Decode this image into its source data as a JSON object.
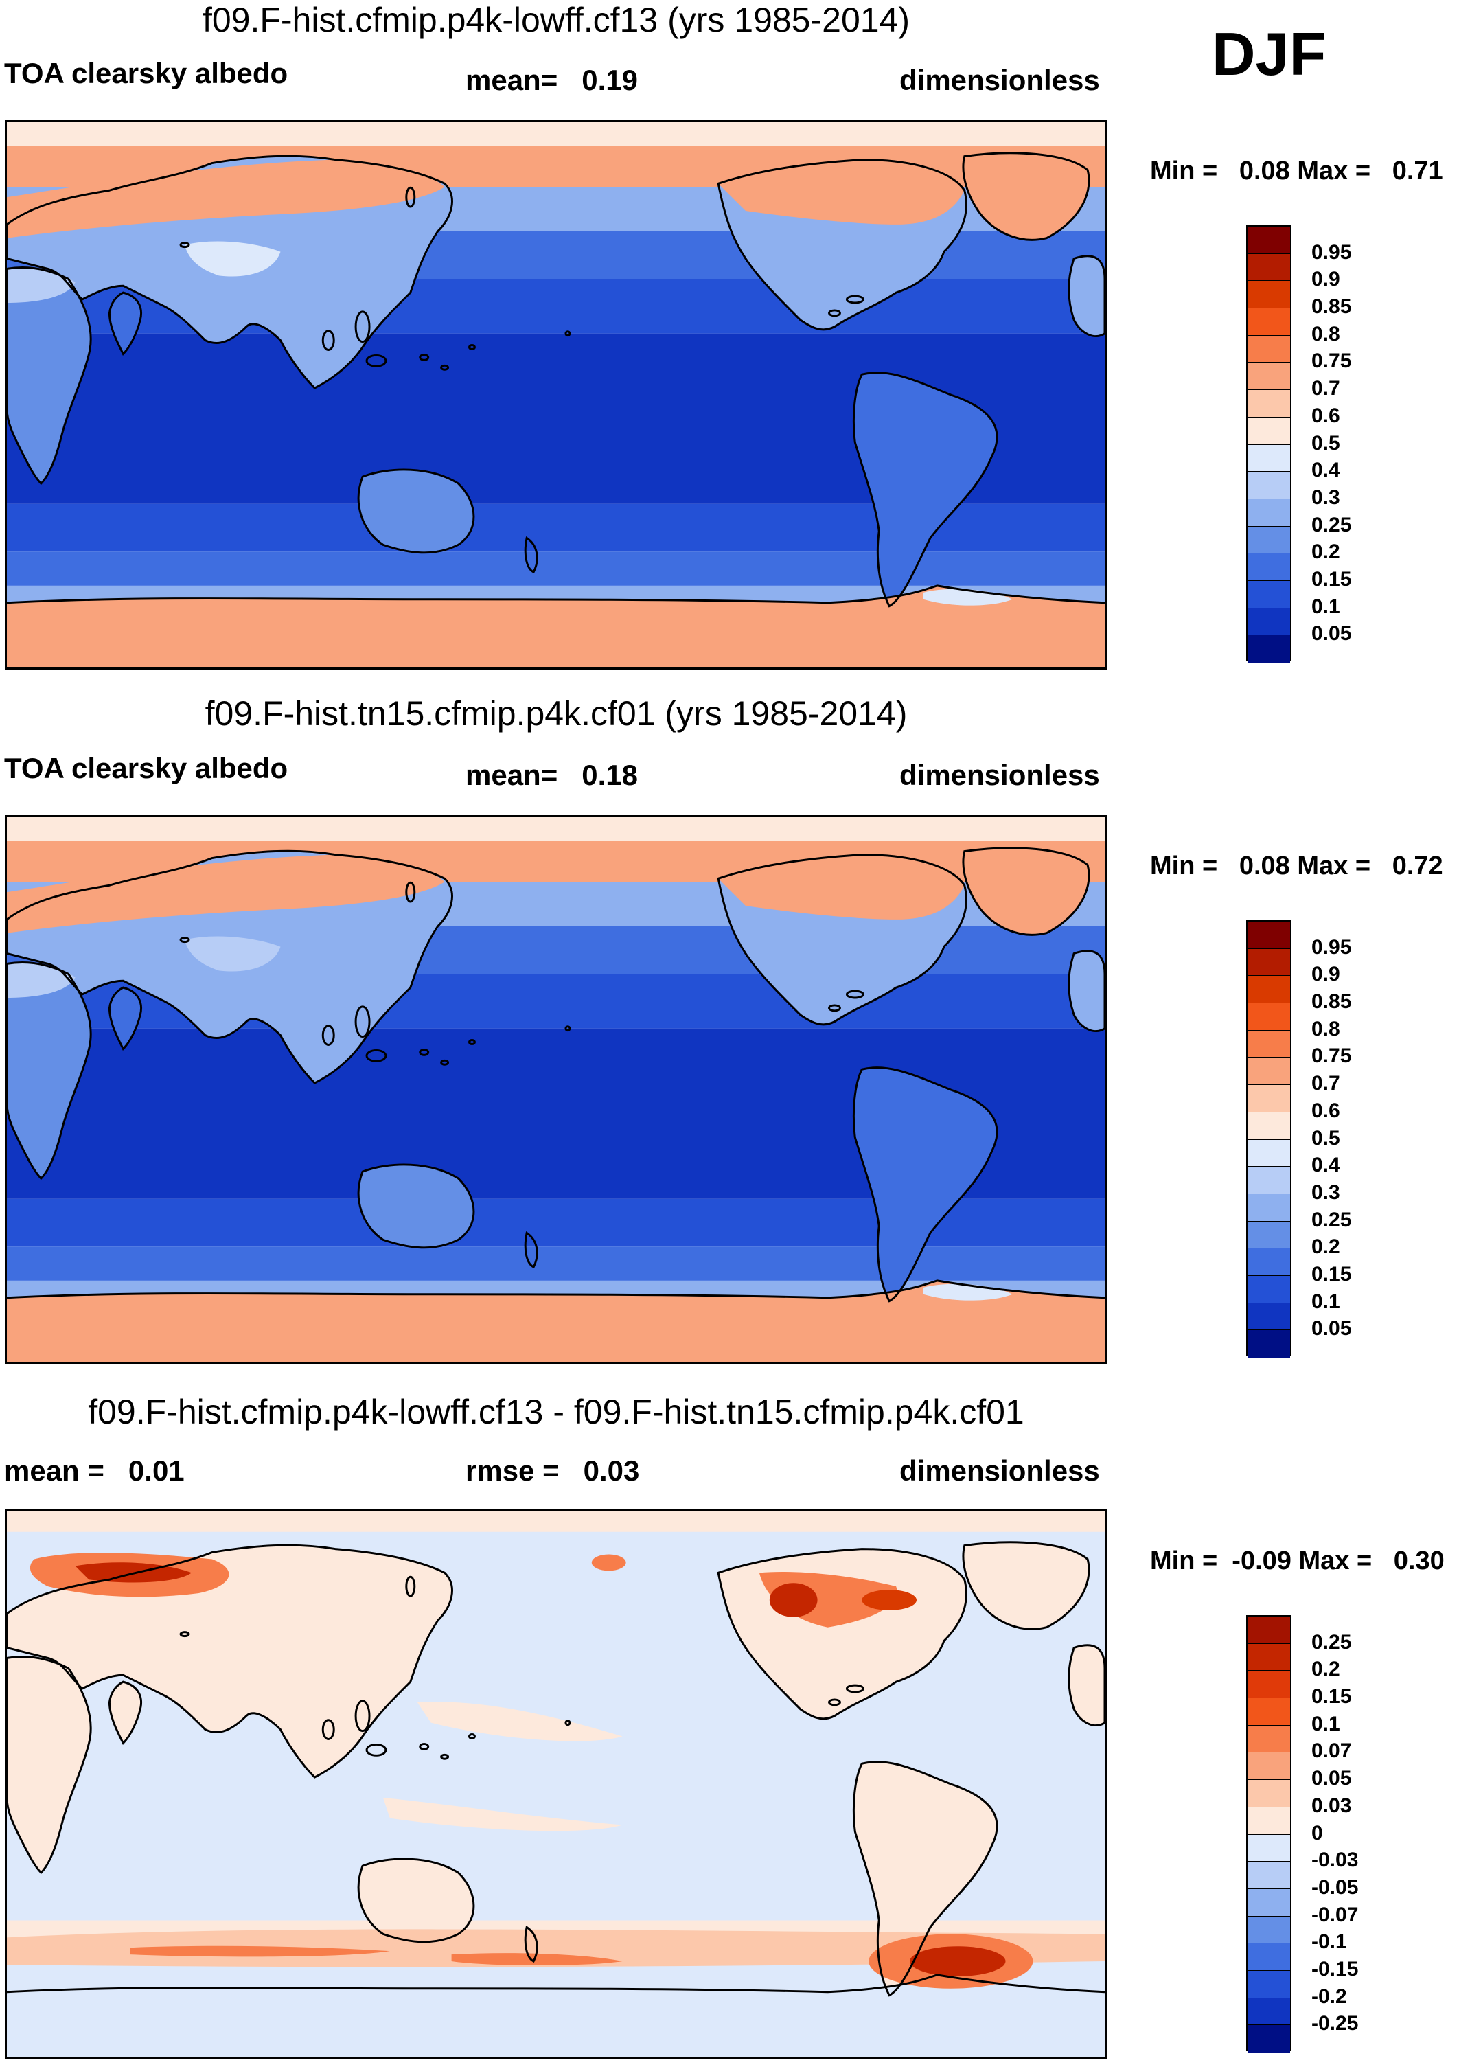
{
  "season": "DJF",
  "panels": [
    {
      "title": "f09.F-hist.cfmip.p4k-lowff.cf13 (yrs 1985-2014)",
      "left_label": "TOA clearsky albedo",
      "mid_label": "mean=   0.19",
      "right_label": "dimensionless",
      "minmax": "Min =   0.08 Max =   0.71",
      "map_type": "full",
      "colorbar": {
        "labels": [
          "0.95",
          "0.9",
          "0.85",
          "0.8",
          "0.75",
          "0.7",
          "0.6",
          "0.5",
          "0.4",
          "0.3",
          "0.25",
          "0.2",
          "0.15",
          "0.1",
          "0.05"
        ],
        "colors": [
          "#7f0000",
          "#b31c00",
          "#d93a00",
          "#f2561a",
          "#f77d4a",
          "#f9a37c",
          "#fcc8ab",
          "#fde9dc",
          "#dde9fb",
          "#b7cdf6",
          "#8eb0ef",
          "#648fe6",
          "#3f6ee0",
          "#2451d6",
          "#1035c1",
          "#000f85"
        ]
      }
    },
    {
      "title": "f09.F-hist.tn15.cfmip.p4k.cf01 (yrs 1985-2014)",
      "left_label": "TOA clearsky albedo",
      "mid_label": "mean=   0.18",
      "right_label": "dimensionless",
      "minmax": "Min =   0.08 Max =   0.72",
      "map_type": "full",
      "colorbar": {
        "labels": [
          "0.95",
          "0.9",
          "0.85",
          "0.8",
          "0.75",
          "0.7",
          "0.6",
          "0.5",
          "0.4",
          "0.3",
          "0.25",
          "0.2",
          "0.15",
          "0.1",
          "0.05"
        ],
        "colors": [
          "#7f0000",
          "#b31c00",
          "#d93a00",
          "#f2561a",
          "#f77d4a",
          "#f9a37c",
          "#fcc8ab",
          "#fde9dc",
          "#dde9fb",
          "#b7cdf6",
          "#8eb0ef",
          "#648fe6",
          "#3f6ee0",
          "#2451d6",
          "#1035c1",
          "#000f85"
        ]
      }
    },
    {
      "title": "f09.F-hist.cfmip.p4k-lowff.cf13 - f09.F-hist.tn15.cfmip.p4k.cf01",
      "left_label": "mean =   0.01",
      "mid_label": "rmse =   0.03",
      "right_label": "dimensionless",
      "minmax": "Min =  -0.09 Max =   0.30",
      "map_type": "diff",
      "colorbar": {
        "labels": [
          "0.25",
          "0.2",
          "0.15",
          "0.1",
          "0.07",
          "0.05",
          "0.03",
          "0",
          "-0.03",
          "-0.05",
          "-0.07",
          "-0.1",
          "-0.15",
          "-0.2",
          "-0.25"
        ],
        "colors": [
          "#a31300",
          "#c42600",
          "#e03a09",
          "#f2561a",
          "#f77d4a",
          "#f9a37c",
          "#fcc8ab",
          "#fde9dc",
          "#dde9fb",
          "#b7cdf6",
          "#8eb0ef",
          "#648fe6",
          "#3f6ee0",
          "#2451d6",
          "#1035c1",
          "#000f85"
        ]
      }
    }
  ]
}
